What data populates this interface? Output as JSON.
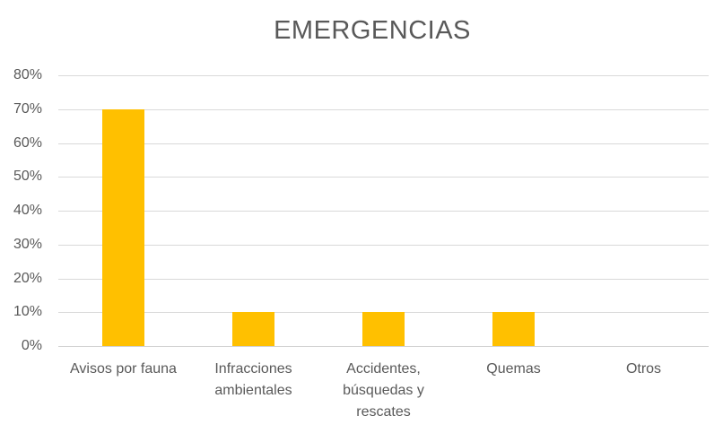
{
  "chart_data": {
    "type": "bar",
    "title": "EMERGENCIAS",
    "categories": [
      "Avisos por fauna",
      "Infracciones ambientales",
      "Accidentes, búsquedas y rescates",
      "Quemas",
      "Otros"
    ],
    "values": [
      70,
      10,
      10,
      10,
      0
    ],
    "unit": "%",
    "xlabel": "",
    "ylabel": "",
    "ylim": [
      0,
      80
    ],
    "ytick_labels": [
      "0%",
      "10%",
      "20%",
      "30%",
      "40%",
      "50%",
      "60%",
      "70%",
      "80%"
    ],
    "grid": true,
    "legend_position": "none",
    "colors": {
      "bar": "#FFC000",
      "text": "#595959",
      "gridline": "#D9D9D9",
      "axis_line": "#D2D2D2",
      "background": "#FFFFFF"
    }
  }
}
